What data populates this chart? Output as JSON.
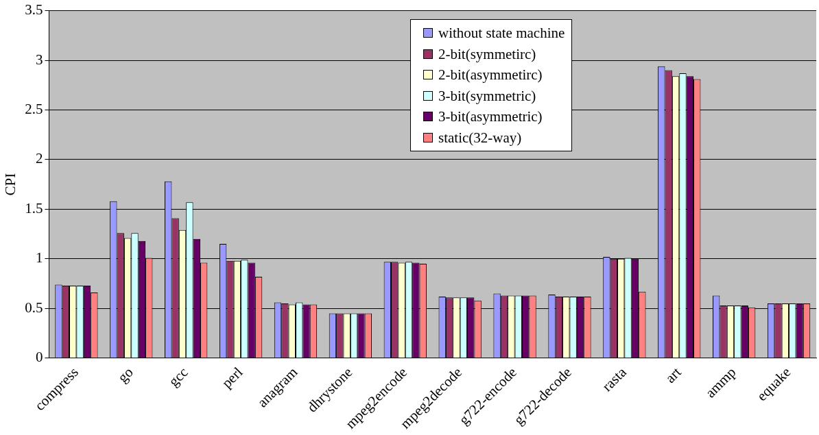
{
  "chart_data": {
    "type": "bar",
    "ylabel": "CPI",
    "categories": [
      "compress",
      "go",
      "gcc",
      "perl",
      "anagram",
      "dhrystone",
      "mpeg2encode",
      "mpeg2decode",
      "g722-encode",
      "g722-decode",
      "rasta",
      "art",
      "ammp",
      "equake"
    ],
    "series": [
      {
        "name": "without state machine",
        "color": "#9999ff",
        "values": [
          0.74,
          1.58,
          1.78,
          1.15,
          0.56,
          0.45,
          0.97,
          0.62,
          0.65,
          0.64,
          1.02,
          2.94,
          0.63,
          0.55
        ]
      },
      {
        "name": "2-bit(symmetirc)",
        "color": "#993366",
        "values": [
          0.73,
          1.26,
          1.41,
          0.98,
          0.55,
          0.45,
          0.97,
          0.61,
          0.63,
          0.62,
          1.0,
          2.9,
          0.53,
          0.55
        ]
      },
      {
        "name": "2-bit(asymmetirc)",
        "color": "#ffffcc",
        "values": [
          0.73,
          1.21,
          1.29,
          0.98,
          0.54,
          0.45,
          0.96,
          0.61,
          0.63,
          0.62,
          1.0,
          2.84,
          0.53,
          0.55
        ]
      },
      {
        "name": "3-bit(symmetric)",
        "color": "#ccffff",
        "values": [
          0.73,
          1.26,
          1.57,
          0.99,
          0.56,
          0.45,
          0.97,
          0.61,
          0.63,
          0.62,
          1.01,
          2.87,
          0.53,
          0.55
        ]
      },
      {
        "name": "3-bit(asymmetric)",
        "color": "#660066",
        "values": [
          0.73,
          1.18,
          1.2,
          0.96,
          0.54,
          0.45,
          0.96,
          0.61,
          0.63,
          0.62,
          1.0,
          2.84,
          0.53,
          0.55
        ]
      },
      {
        "name": "static(32-way)",
        "color": "#ff8080",
        "values": [
          0.66,
          1.01,
          0.96,
          0.82,
          0.54,
          0.45,
          0.95,
          0.58,
          0.63,
          0.62,
          0.67,
          2.81,
          0.51,
          0.55
        ]
      }
    ],
    "ylim": [
      0,
      3.5
    ],
    "yticks": [
      0,
      0.5,
      1,
      1.5,
      2,
      2.5,
      3,
      3.5
    ],
    "grid": "y",
    "legend": "top"
  }
}
